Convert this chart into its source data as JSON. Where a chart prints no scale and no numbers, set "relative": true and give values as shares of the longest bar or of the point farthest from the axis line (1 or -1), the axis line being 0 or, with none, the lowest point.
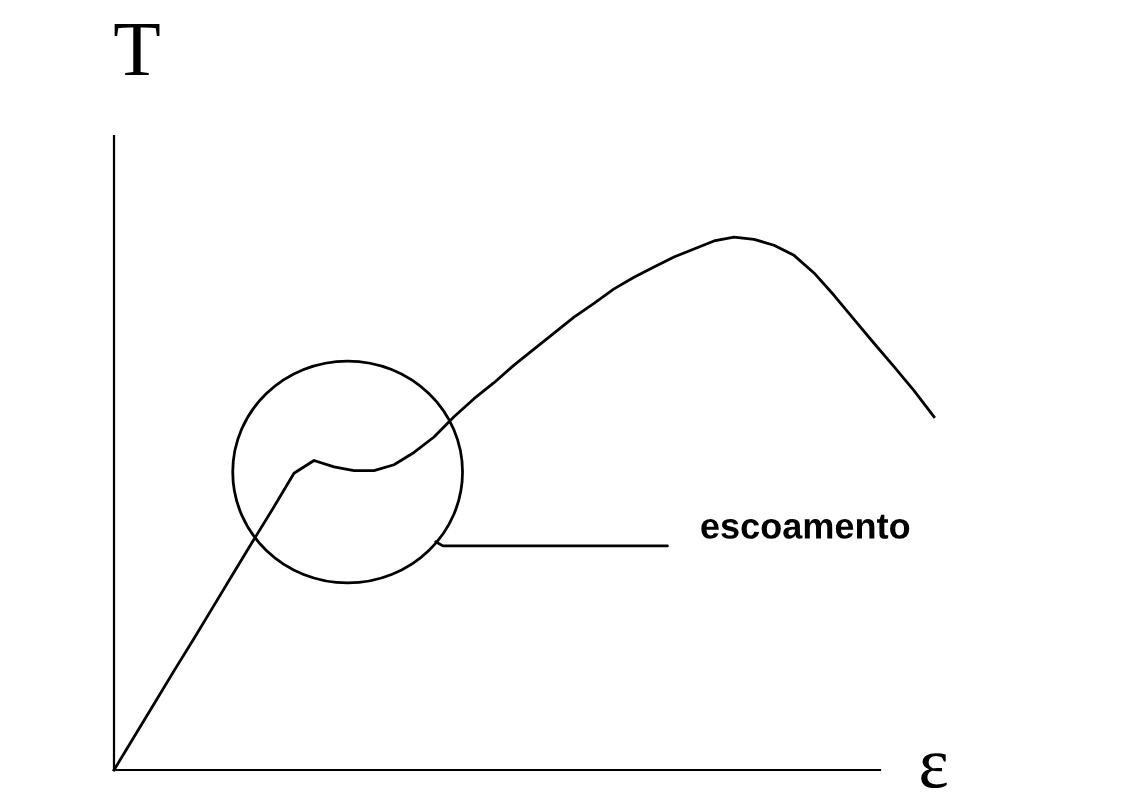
{
  "chart_data": {
    "type": "line",
    "relative": true,
    "xlabel": "ε",
    "ylabel": "T",
    "color": "#000000",
    "marker": "none",
    "line_style": "solid",
    "categories": [
      null,
      null,
      null,
      null,
      null,
      null,
      null,
      null,
      null,
      null,
      null,
      null,
      null,
      null,
      null,
      null,
      null,
      null,
      null,
      null,
      null,
      null,
      null,
      null,
      null,
      null,
      null,
      null,
      null,
      null,
      null,
      null,
      null,
      null,
      null,
      null,
      null,
      null,
      null,
      null,
      null,
      null
    ],
    "values": [
      0,
      0.062,
      0.124,
      0.186,
      0.247,
      0.309,
      0.371,
      0.433,
      0.494,
      0.557,
      0.581,
      0.569,
      0.562,
      0.562,
      0.573,
      0.596,
      0.625,
      0.663,
      0.697,
      0.727,
      0.76,
      0.79,
      0.82,
      0.85,
      0.876,
      0.903,
      0.925,
      0.944,
      0.963,
      0.978,
      0.993,
      1,
      0.996,
      0.985,
      0.966,
      0.933,
      0.891,
      0.846,
      0.801,
      0.757,
      0.712,
      0.663
    ],
    "annotations": [
      "escoamento"
    ]
  }
}
